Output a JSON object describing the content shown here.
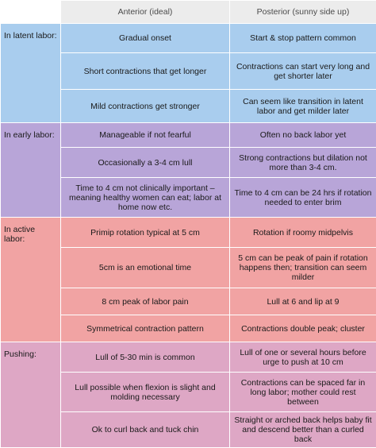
{
  "header": {
    "col1": "Anterior (ideal)",
    "col2": "Posterior (sunny side up)"
  },
  "sections": [
    {
      "label": "In latent labor:",
      "color": "#a9cdee",
      "rows": [
        {
          "anterior": "Gradual onset",
          "posterior": "Start & stop pattern common"
        },
        {
          "anterior": "Short contractions that get longer",
          "posterior": "Contractions can start very long and get shorter later"
        },
        {
          "anterior": "Mild contractions get stronger",
          "posterior": "Can seem like transition in latent labor and get milder later"
        }
      ]
    },
    {
      "label": "In early labor:",
      "color": "#b8a5d8",
      "rows": [
        {
          "anterior": "Manageable if not fearful",
          "posterior": "Often no back labor yet"
        },
        {
          "anterior": "Occasionally a 3-4 cm lull",
          "posterior": "Strong contractions but dilation not more than 3-4 cm."
        },
        {
          "anterior": "Time to 4 cm not clinically important – meaning healthy women can eat; labor at home now etc.",
          "posterior": "Time to 4 cm can be 24 hrs if rotation needed to enter brim"
        }
      ]
    },
    {
      "label": "In active labor:",
      "color": "#f1a3a3",
      "rows": [
        {
          "anterior": "Primip rotation typical at 5 cm",
          "posterior": "Rotation if roomy midpelvis"
        },
        {
          "anterior": "5cm is an emotional time",
          "posterior": "5 cm can be peak of pain if rotation happens then; transition can seem milder"
        },
        {
          "anterior": "8 cm peak of labor pain",
          "posterior": "Lull at 6 and lip at 9"
        },
        {
          "anterior": "Symmetrical contraction pattern",
          "posterior": "Contractions double peak; cluster"
        }
      ]
    },
    {
      "label": "Pushing:",
      "color": "#dea7c5",
      "rows": [
        {
          "anterior": "Lull of 5-30 min is common",
          "posterior": "Lull of one or several hours before urge to push at 10 cm"
        },
        {
          "anterior": "Lull possible when flexion is slight and molding necessary",
          "posterior": "Contractions can be spaced far in long labor; mother could rest between"
        },
        {
          "anterior": "Ok to curl back and tuck chin",
          "posterior": "Straight or arched back helps baby fit and descend better than a curled back"
        }
      ]
    }
  ]
}
